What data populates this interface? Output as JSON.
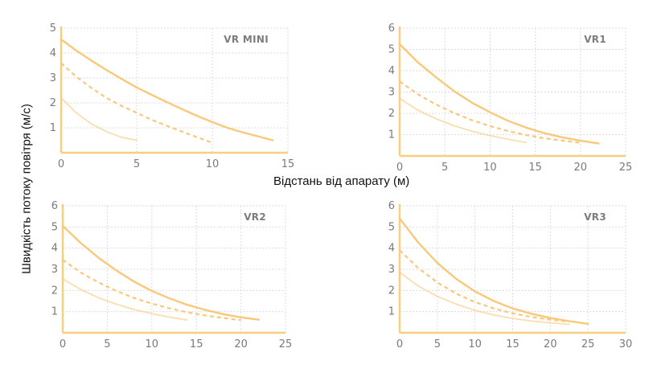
{
  "colors": {
    "axis": "#f8cf80",
    "grid": "#dddddd",
    "line": "#f9c87a",
    "tick_text": "#7a7a7a"
  },
  "labels": {
    "xlabel": "Відстань від апарату (м)",
    "ylabel": "Швидкість потоку повітря (м/с)"
  },
  "chart_data": [
    {
      "type": "line",
      "title": "VR MINI",
      "xlim": [
        0,
        15
      ],
      "ylim": [
        0,
        5
      ],
      "xticks": [
        0,
        5,
        10,
        15
      ],
      "yticks": [
        1,
        2,
        3,
        4,
        5
      ],
      "grid": true,
      "series": [
        {
          "style": "solid",
          "x": [
            0,
            1,
            2,
            3,
            4,
            5,
            6,
            7,
            8,
            9,
            10,
            11,
            12,
            13,
            14
          ],
          "y": [
            4.55,
            4.1,
            3.7,
            3.32,
            2.96,
            2.62,
            2.32,
            2.03,
            1.75,
            1.48,
            1.23,
            1.0,
            0.82,
            0.66,
            0.5
          ]
        },
        {
          "style": "dashed",
          "x": [
            0,
            1,
            2,
            3,
            4,
            5,
            6,
            7,
            8,
            9,
            10
          ],
          "y": [
            3.6,
            3.05,
            2.6,
            2.2,
            1.88,
            1.6,
            1.32,
            1.08,
            0.85,
            0.62,
            0.4
          ]
        },
        {
          "style": "faint",
          "x": [
            0,
            1,
            2,
            3,
            4,
            5
          ],
          "y": [
            2.2,
            1.6,
            1.15,
            0.85,
            0.62,
            0.5
          ]
        }
      ]
    },
    {
      "type": "line",
      "title": "VR1",
      "xlim": [
        0,
        25
      ],
      "ylim": [
        0,
        6
      ],
      "xticks": [
        0,
        5,
        10,
        15,
        20,
        25
      ],
      "yticks": [
        1,
        2,
        3,
        4,
        5,
        6
      ],
      "grid": true,
      "series": [
        {
          "style": "solid",
          "x": [
            0,
            2,
            4,
            6,
            8,
            10,
            12,
            14,
            16,
            18,
            20,
            22
          ],
          "y": [
            5.25,
            4.4,
            3.7,
            3.05,
            2.5,
            2.05,
            1.65,
            1.33,
            1.07,
            0.87,
            0.72,
            0.58
          ]
        },
        {
          "style": "dashed",
          "x": [
            0,
            2,
            4,
            6,
            8,
            10,
            12,
            14,
            16,
            18,
            20
          ],
          "y": [
            3.5,
            2.9,
            2.42,
            2.02,
            1.68,
            1.4,
            1.17,
            0.98,
            0.83,
            0.72,
            0.62
          ]
        },
        {
          "style": "faint",
          "x": [
            0,
            2,
            4,
            6,
            8,
            10,
            12,
            14
          ],
          "y": [
            2.7,
            2.15,
            1.75,
            1.42,
            1.16,
            0.95,
            0.78,
            0.63
          ]
        }
      ]
    },
    {
      "type": "line",
      "title": "VR2",
      "xlim": [
        0,
        25
      ],
      "ylim": [
        0,
        6
      ],
      "xticks": [
        0,
        5,
        10,
        15,
        20,
        25
      ],
      "yticks": [
        1,
        2,
        3,
        4,
        5,
        6
      ],
      "grid": true,
      "series": [
        {
          "style": "solid",
          "x": [
            0,
            2,
            4,
            6,
            8,
            10,
            12,
            14,
            16,
            18,
            20,
            22
          ],
          "y": [
            5.05,
            4.25,
            3.55,
            2.95,
            2.42,
            1.98,
            1.62,
            1.32,
            1.08,
            0.88,
            0.73,
            0.62
          ]
        },
        {
          "style": "dashed",
          "x": [
            0,
            2,
            4,
            6,
            8,
            10,
            12,
            14,
            16,
            18,
            20
          ],
          "y": [
            3.45,
            2.85,
            2.38,
            1.98,
            1.65,
            1.38,
            1.15,
            0.97,
            0.82,
            0.7,
            0.6
          ]
        },
        {
          "style": "faint",
          "x": [
            0,
            2,
            4,
            6,
            8,
            10,
            12,
            14
          ],
          "y": [
            2.55,
            2.05,
            1.66,
            1.35,
            1.1,
            0.9,
            0.74,
            0.6
          ]
        }
      ]
    },
    {
      "type": "line",
      "title": "VR3",
      "xlim": [
        0,
        30
      ],
      "ylim": [
        0,
        6
      ],
      "xticks": [
        0,
        5,
        10,
        15,
        20,
        25,
        30
      ],
      "yticks": [
        1,
        2,
        3,
        4,
        5,
        6
      ],
      "grid": true,
      "series": [
        {
          "style": "solid",
          "x": [
            0,
            2.5,
            5,
            7.5,
            10,
            12.5,
            15,
            17.5,
            20,
            22.5,
            25
          ],
          "y": [
            5.4,
            4.25,
            3.3,
            2.55,
            1.95,
            1.5,
            1.15,
            0.9,
            0.7,
            0.55,
            0.42
          ]
        },
        {
          "style": "dashed",
          "x": [
            0,
            2.5,
            5,
            7.5,
            10,
            12.5,
            15,
            17.5,
            20,
            22.5
          ],
          "y": [
            3.9,
            3.05,
            2.38,
            1.85,
            1.45,
            1.15,
            0.92,
            0.75,
            0.62,
            0.52
          ]
        },
        {
          "style": "faint",
          "x": [
            0,
            2.5,
            5,
            7.5,
            10,
            12.5,
            15,
            17.5,
            20,
            22.5
          ],
          "y": [
            2.85,
            2.2,
            1.72,
            1.35,
            1.06,
            0.84,
            0.68,
            0.56,
            0.47,
            0.4
          ]
        }
      ]
    }
  ]
}
